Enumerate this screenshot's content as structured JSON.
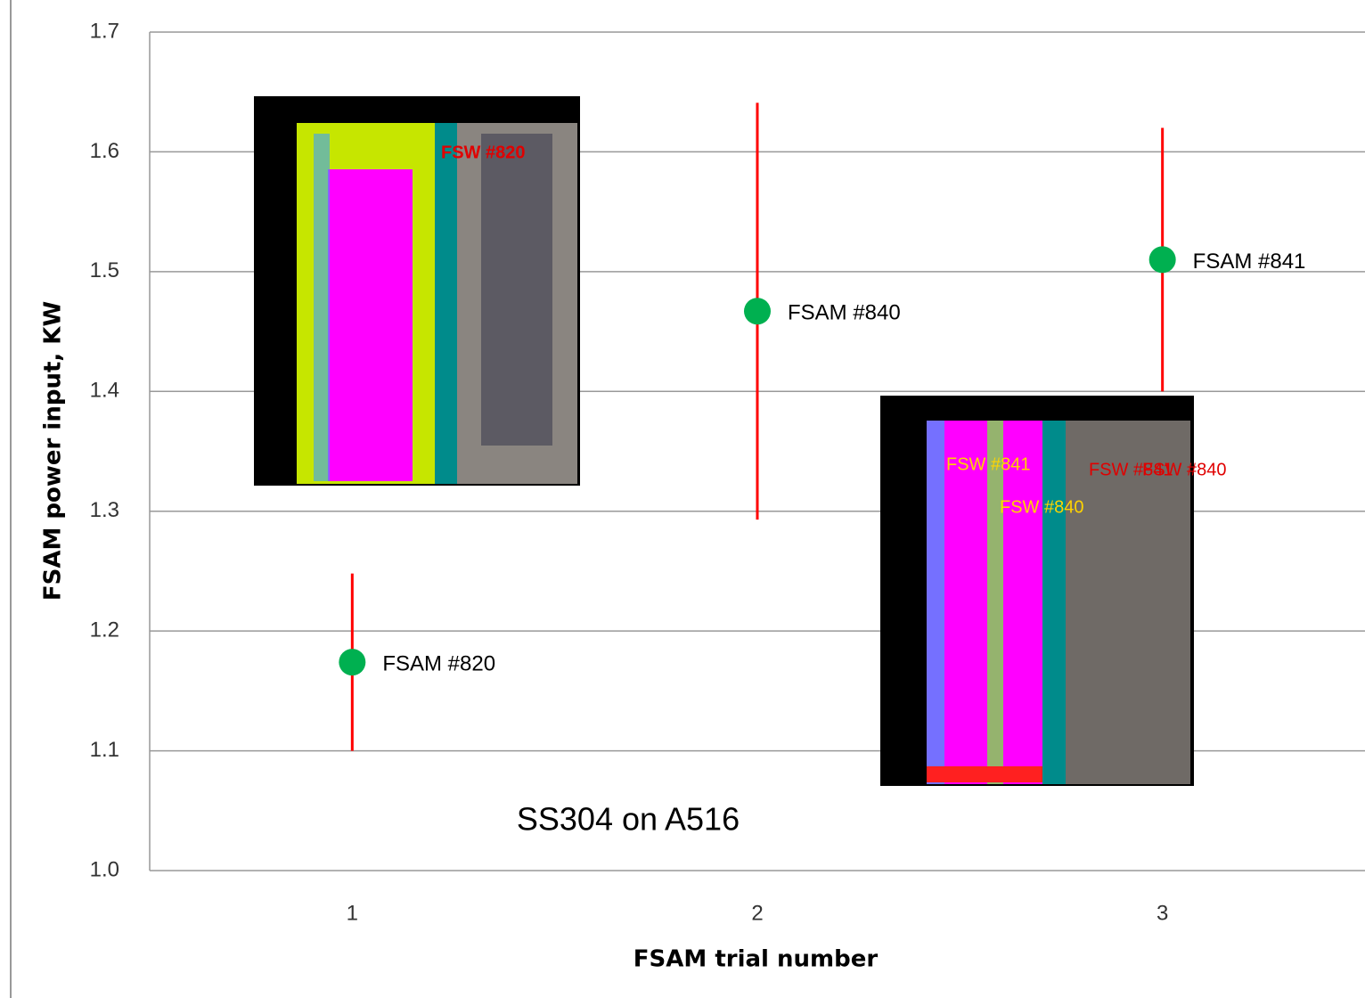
{
  "chart_data": {
    "type": "scatter",
    "x_label": "FSAM trial number",
    "y_label": "FSAM power input, KW",
    "series": [
      {
        "color": "#00b050",
        "error_color": "#ff0000",
        "x": [
          1,
          2,
          3
        ],
        "values": [
          1.174,
          1.467,
          1.51
        ],
        "errors": [
          0.074,
          0.174,
          0.11
        ],
        "point_labels": [
          "FSAM #820",
          "FSAM #840",
          "FSAM #841"
        ]
      }
    ],
    "xlim": [
      0.5,
      3.5
    ],
    "xticks": [
      1,
      2,
      3
    ],
    "ylim": [
      1.0,
      1.7
    ],
    "yticks": [
      {
        "value": 1.0,
        "label": "1.0"
      },
      1.1,
      1.2,
      1.3,
      1.4,
      1.5,
      1.6,
      1.7
    ],
    "grid": true,
    "annotation": "SS304 on A516",
    "insets": [
      {
        "labels": [
          "FSW #820"
        ]
      },
      {
        "labels": [
          "FSW #841",
          "FSW #840",
          "FSW #841",
          "FSW #840"
        ]
      }
    ]
  }
}
